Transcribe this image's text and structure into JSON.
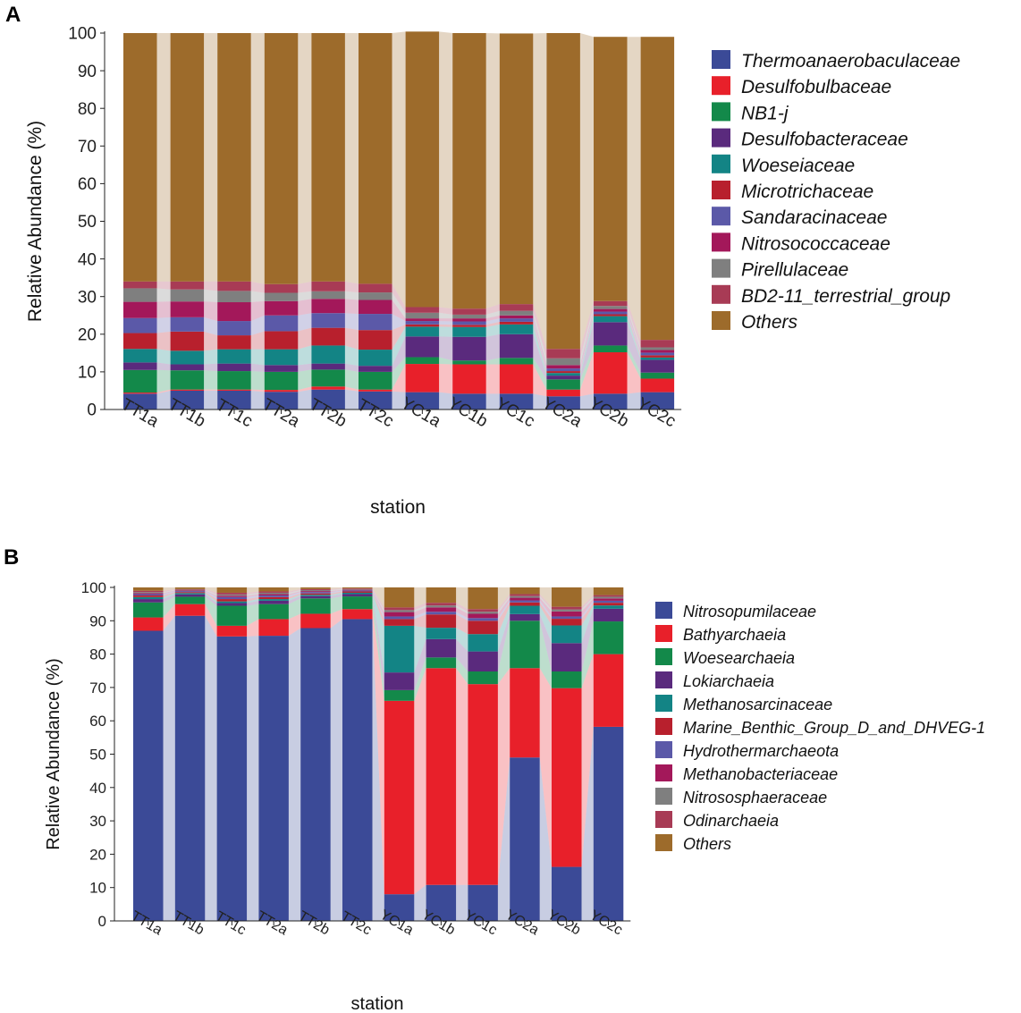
{
  "chart_data": [
    {
      "type": "bar",
      "stacked": true,
      "panel": "A",
      "xlabel": "station",
      "ylabel": "Relative Abundance (%)",
      "ylim": [
        0,
        100
      ],
      "yticks": [
        0,
        10,
        20,
        30,
        40,
        50,
        60,
        70,
        80,
        90,
        100
      ],
      "categories": [
        "TT1a",
        "TT1b",
        "TT1c",
        "TT2a",
        "TT2b",
        "TT2c",
        "YC1a",
        "YC1b",
        "YC1c",
        "YC2a",
        "YC2b",
        "YC2c"
      ],
      "legend_position": "right",
      "series": [
        {
          "name": "Thermoanaerobaculaceae",
          "color": "#3b4a97",
          "values": [
            4.2,
            5.0,
            5.0,
            4.7,
            5.3,
            4.8,
            4.6,
            4.2,
            4.2,
            3.5,
            4.2,
            4.6
          ]
        },
        {
          "name": "Desulfobulbaceae",
          "color": "#e8202a",
          "values": [
            0.3,
            0.3,
            0.3,
            0.5,
            0.8,
            0.5,
            7.5,
            7.8,
            7.8,
            1.8,
            11.0,
            3.6
          ]
        },
        {
          "name": "NB1-j",
          "color": "#13894a",
          "values": [
            6.0,
            5.1,
            4.9,
            4.8,
            4.5,
            4.7,
            1.8,
            1.0,
            1.7,
            2.7,
            1.8,
            1.6
          ]
        },
        {
          "name": "Desulfobacteraceae",
          "color": "#5a2a7d",
          "values": [
            2.0,
            1.6,
            2.0,
            1.8,
            1.6,
            1.6,
            5.5,
            6.3,
            6.3,
            1.0,
            6.2,
            3.4
          ]
        },
        {
          "name": "Woeseiaceae",
          "color": "#138485",
          "values": [
            3.6,
            3.6,
            3.8,
            4.2,
            4.8,
            4.3,
            2.6,
            2.6,
            2.6,
            0.7,
            1.6,
            0.6
          ]
        },
        {
          "name": "Microtrichaceae",
          "color": "#b8202d",
          "values": [
            4.2,
            5.1,
            3.7,
            4.8,
            4.7,
            5.2,
            0.6,
            0.6,
            0.7,
            0.5,
            0.5,
            0.6
          ]
        },
        {
          "name": "Sandaracinaceae",
          "color": "#5b59a8",
          "values": [
            4.0,
            3.8,
            3.8,
            4.2,
            3.9,
            4.3,
            0.9,
            0.9,
            0.9,
            0.7,
            0.7,
            0.7
          ]
        },
        {
          "name": "Nitrosococcaceae",
          "color": "#a3185a",
          "values": [
            4.3,
            4.2,
            5.0,
            3.8,
            3.8,
            3.7,
            0.7,
            0.8,
            0.8,
            0.9,
            0.7,
            0.7
          ]
        },
        {
          "name": "Pirellulaceae",
          "color": "#7f7f7f",
          "values": [
            3.6,
            3.2,
            3.0,
            2.2,
            2.0,
            2.0,
            1.5,
            1.0,
            1.2,
            1.8,
            0.8,
            0.7
          ]
        },
        {
          "name": "BD2-11_terrestrial_group",
          "color": "#a83b55",
          "values": [
            1.8,
            2.1,
            2.5,
            2.3,
            2.6,
            2.3,
            1.5,
            1.6,
            1.8,
            2.5,
            1.3,
            2.0
          ]
        },
        {
          "name": "Others",
          "color": "#9d6b2b",
          "values": [
            66.0,
            66.0,
            66.0,
            66.7,
            66.0,
            66.6,
            73.2,
            73.2,
            71.9,
            83.9,
            70.2,
            80.5
          ]
        }
      ]
    },
    {
      "type": "bar",
      "stacked": true,
      "panel": "B",
      "xlabel": "station",
      "ylabel": "Relative Abundance (%)",
      "ylim": [
        0,
        100
      ],
      "yticks": [
        0,
        10,
        20,
        30,
        40,
        50,
        60,
        70,
        80,
        90,
        100
      ],
      "categories": [
        "TT1a",
        "TT1b",
        "TT1c",
        "TT2a",
        "TT2b",
        "TT2c",
        "YC1a",
        "YC1b",
        "YC1c",
        "YC2a",
        "YC2b",
        "YC2c"
      ],
      "legend_position": "right",
      "series": [
        {
          "name": "Nitrosopumilaceae",
          "color": "#3b4a97",
          "values": [
            87.0,
            91.5,
            85.3,
            85.5,
            87.8,
            90.5,
            8.0,
            10.8,
            10.8,
            49.0,
            16.2,
            58.2
          ]
        },
        {
          "name": "Bathyarchaeia",
          "color": "#e8202a",
          "values": [
            4.0,
            3.5,
            3.2,
            5.0,
            4.3,
            3.0,
            58.0,
            65.0,
            60.2,
            26.8,
            53.6,
            21.8
          ]
        },
        {
          "name": "Woesearchaeia",
          "color": "#13894a",
          "values": [
            4.5,
            2.2,
            6.0,
            4.5,
            4.6,
            3.8,
            3.2,
            3.2,
            3.8,
            14.2,
            5.0,
            9.8
          ]
        },
        {
          "name": "Lokiarchaeia",
          "color": "#5a2a7d",
          "values": [
            1.0,
            0.7,
            0.8,
            1.0,
            0.7,
            0.7,
            5.3,
            5.5,
            6.0,
            2.0,
            8.5,
            3.8
          ]
        },
        {
          "name": "Methanosarcinaceae",
          "color": "#138485",
          "values": [
            0.6,
            0.4,
            0.5,
            0.5,
            0.4,
            0.4,
            14.0,
            3.4,
            5.2,
            2.5,
            5.3,
            1.0
          ]
        },
        {
          "name": "Marine_Benthic_Group_D_and_DHVEG-1",
          "color": "#b8202d",
          "values": [
            0.5,
            0.3,
            0.7,
            0.6,
            0.4,
            0.4,
            2.0,
            4.0,
            4.0,
            1.0,
            2.0,
            0.8
          ]
        },
        {
          "name": "Hydrothermarchaeota",
          "color": "#5b59a8",
          "values": [
            0.4,
            0.3,
            0.6,
            0.5,
            0.4,
            0.3,
            0.8,
            0.8,
            0.8,
            0.6,
            0.7,
            0.6
          ]
        },
        {
          "name": "Methanobacteriaceae",
          "color": "#a3185a",
          "values": [
            0.3,
            0.2,
            0.4,
            0.4,
            0.3,
            0.2,
            1.3,
            1.3,
            1.3,
            0.8,
            1.5,
            0.7
          ]
        },
        {
          "name": "Nitrososphaeraceae",
          "color": "#7f7f7f",
          "values": [
            0.3,
            0.2,
            0.4,
            0.4,
            0.3,
            0.2,
            0.6,
            0.6,
            0.6,
            0.5,
            0.6,
            0.5
          ]
        },
        {
          "name": "Odinarchaeia",
          "color": "#a83b55",
          "values": [
            0.4,
            0.2,
            0.5,
            0.4,
            0.3,
            0.2,
            0.8,
            0.8,
            0.8,
            0.6,
            0.8,
            0.5
          ]
        },
        {
          "name": "Others",
          "color": "#9d6b2b",
          "values": [
            1.0,
            0.5,
            1.6,
            1.2,
            0.5,
            0.3,
            6.0,
            4.6,
            6.5,
            2.0,
            5.8,
            2.3
          ]
        }
      ]
    }
  ],
  "panels": {
    "a_letter": "A",
    "b_letter": "B"
  }
}
